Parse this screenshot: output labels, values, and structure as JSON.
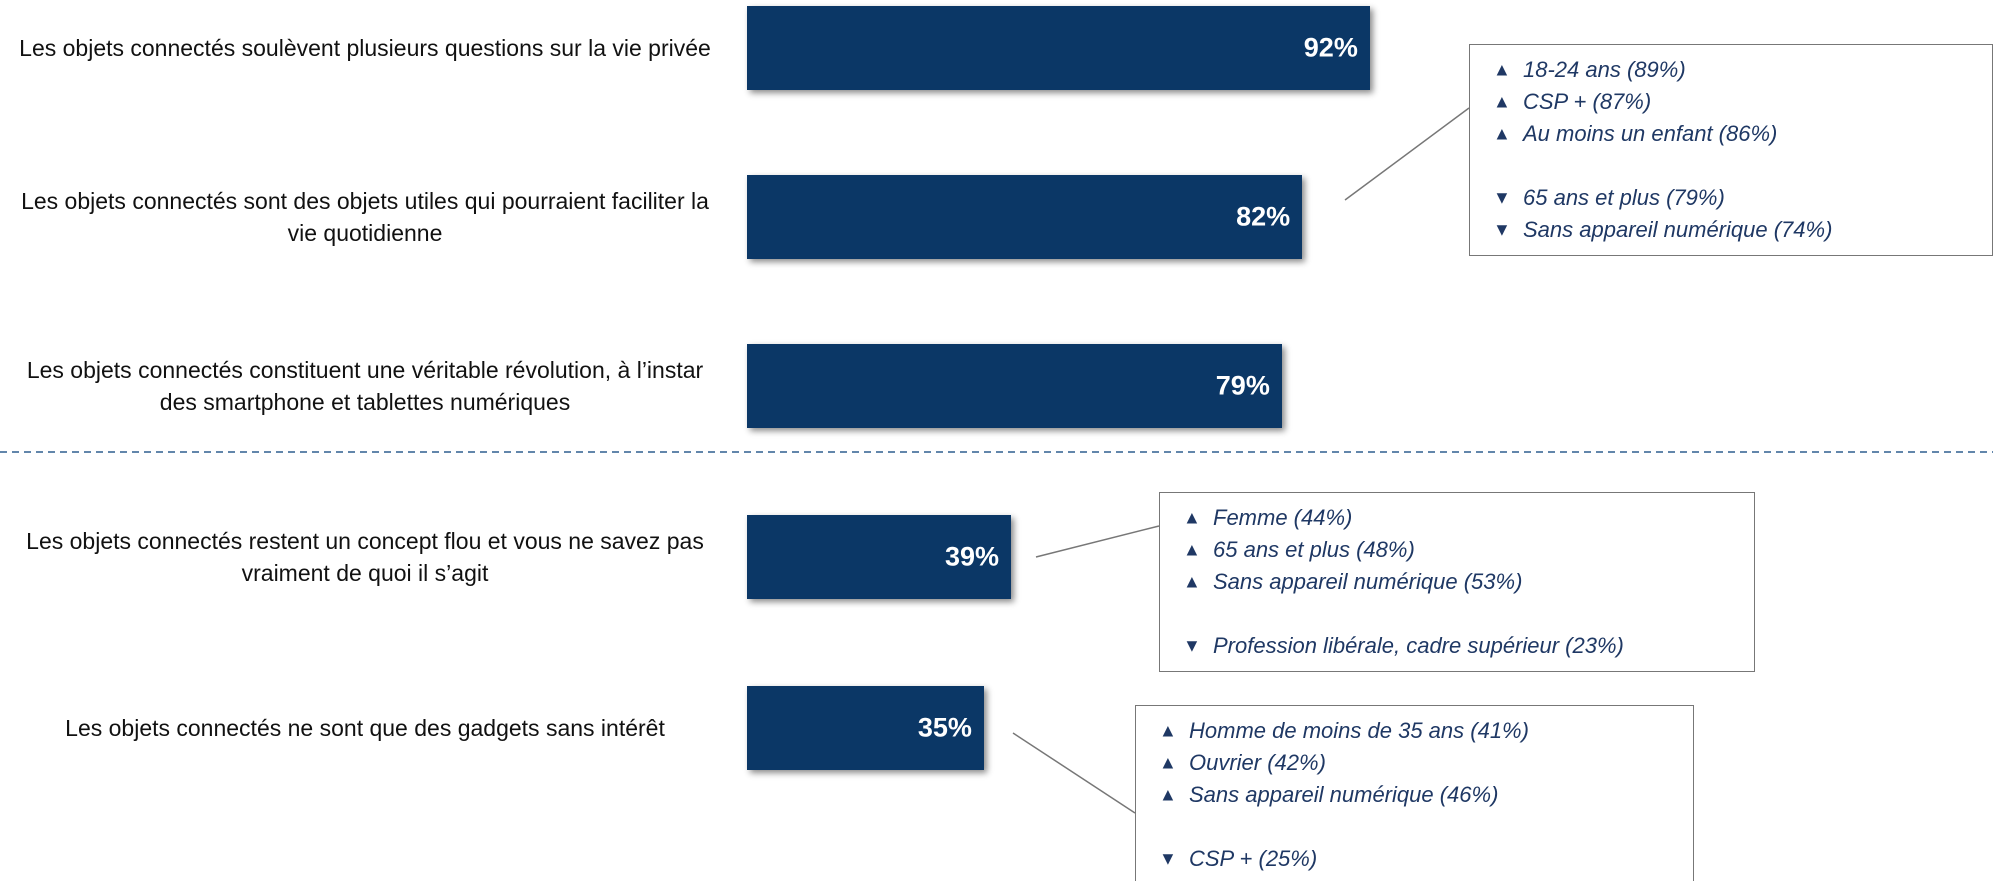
{
  "chart_data": {
    "type": "bar",
    "orientation": "horizontal",
    "categories": [
      "Les objets connectés soulèvent plusieurs questions sur la vie privée",
      "Les objets connectés sont des objets utiles qui pourraient faciliter la vie quotidienne",
      "Les objets connectés constituent une véritable révolution, à l’instar des smartphone et tablettes numériques",
      "Les objets connectés restent un concept flou et vous ne savez pas vraiment de quoi il s’agit",
      "Les objets connectés ne sont que des gadgets sans intérêt"
    ],
    "values": [
      92,
      82,
      79,
      39,
      35
    ],
    "value_labels": [
      "92%",
      "82%",
      "79%",
      "39%",
      "35%"
    ],
    "color": "#0b3766",
    "xlim": [
      0,
      100
    ],
    "up_marker": "▲",
    "down_marker": "▼",
    "callouts": [
      null,
      {
        "up": [
          "18-24 ans (89%)",
          "CSP + (87%)",
          "Au moins un enfant (86%)"
        ],
        "down": [
          "65 ans et plus (79%)",
          "Sans appareil numérique (74%)"
        ]
      },
      null,
      {
        "up": [
          "Femme (44%)",
          "65 ans et plus (48%)",
          "Sans appareil numérique (53%)"
        ],
        "down": [
          "Profession libérale, cadre supérieur (23%)"
        ]
      },
      {
        "up": [
          "Homme de moins de 35 ans (41%)",
          "Ouvrier (42%)",
          "Sans appareil numérique (46%)"
        ],
        "down": [
          "CSP + (25%)"
        ]
      }
    ]
  }
}
